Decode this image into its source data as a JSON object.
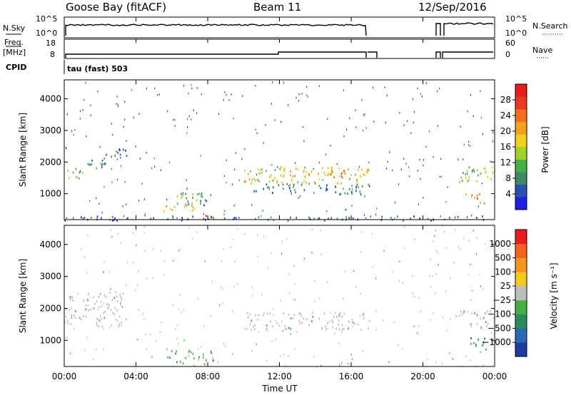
{
  "header": {
    "station": "Goose Bay (fitACF)",
    "beam": "Beam 11",
    "date": "12/Sep/2016"
  },
  "top_panels": {
    "nsky_label": "N.Sky",
    "nsky_ticks": [
      "10^5",
      "10^0"
    ],
    "nsearch_label": "N.Search",
    "nsearch_ticks": [
      "10^5",
      "10^0"
    ],
    "freq_label": "Freq.",
    "freq_unit": "[MHz]",
    "freq_ticks": [
      "18",
      "8"
    ],
    "nave_label": "Nave",
    "nave_ticks": [
      "60",
      "0"
    ],
    "cpid_label": "CPID",
    "cpid_value": "tau (fast) 503"
  },
  "chart_data": [
    {
      "type": "heatmap",
      "panel": "power",
      "ylabel": "Slant Range [km]",
      "xlabel": "Time UT",
      "x_ticks": [
        "00:00",
        "04:00",
        "08:00",
        "12:00",
        "16:00",
        "20:00",
        "00:00"
      ],
      "xlim_hours": [
        0,
        24
      ],
      "ylim": [
        180,
        4600
      ],
      "y_ticks": [
        1000,
        2000,
        3000,
        4000
      ],
      "colorbar_label": "Power [dB]",
      "colorbar_ticks": [
        "28",
        "24",
        "20",
        "16",
        "12",
        "8",
        "4"
      ],
      "colorbar_colors": [
        "#1f1fe6",
        "#2a4fb0",
        "#3c8a66",
        "#46b046",
        "#a0d22a",
        "#f0d21e",
        "#f5a01e",
        "#f06e1e",
        "#e63a1e",
        "#e61e1e"
      ],
      "echo_regions": [
        {
          "t0": 0.0,
          "t1": 1.0,
          "r0": 1450,
          "r1": 1800,
          "level": 0.35
        },
        {
          "t0": 1.0,
          "t1": 2.3,
          "r0": 1800,
          "r1": 2200,
          "level": 0.25
        },
        {
          "t0": 2.3,
          "t1": 3.5,
          "r0": 2150,
          "r1": 2550,
          "level": 0.18
        },
        {
          "t0": 5.5,
          "t1": 7.5,
          "r0": 400,
          "r1": 650,
          "level": 0.5
        },
        {
          "t0": 6.0,
          "t1": 8.3,
          "r0": 650,
          "r1": 1200,
          "level": 0.3
        },
        {
          "t0": 7.6,
          "t1": 8.3,
          "r0": 250,
          "r1": 450,
          "level": 0.85
        },
        {
          "t0": 10.0,
          "t1": 17.0,
          "r0": 1350,
          "r1": 1900,
          "level": 0.55
        },
        {
          "t0": 12.5,
          "t1": 15.5,
          "r0": 1550,
          "r1": 1750,
          "level": 0.75
        },
        {
          "t0": 10.5,
          "t1": 17.0,
          "r0": 1000,
          "r1": 1350,
          "level": 0.2
        },
        {
          "t0": 22.0,
          "t1": 24.0,
          "r0": 1400,
          "r1": 1950,
          "level": 0.45
        },
        {
          "t0": 22.3,
          "t1": 23.5,
          "r0": 700,
          "r1": 1050,
          "level": 0.85
        },
        {
          "t0": 0.0,
          "t1": 24.0,
          "r0": 180,
          "r1": 320,
          "level": 0.15
        }
      ]
    },
    {
      "type": "heatmap",
      "panel": "velocity",
      "ylabel": "Slant Range [km]",
      "xlabel": "Time UT",
      "x_ticks": [
        "00:00",
        "04:00",
        "08:00",
        "12:00",
        "16:00",
        "20:00",
        "00:00"
      ],
      "xlim_hours": [
        0,
        24
      ],
      "ylim": [
        180,
        4600
      ],
      "y_ticks": [
        1000,
        2000,
        3000,
        4000
      ],
      "colorbar_label": "Velocity [m s⁻¹]",
      "colorbar_ticks": [
        "1000",
        "500",
        "100",
        "25",
        "−25",
        "−100",
        "−500",
        "−1000"
      ],
      "colorbar_colors": [
        "#1e3ca0",
        "#2a6ab4",
        "#2e8a5a",
        "#46b046",
        "#bebebe",
        "#f0c81e",
        "#f5961e",
        "#f0641e",
        "#e61e1e"
      ],
      "echo_regions": [
        {
          "t0": 0.0,
          "t1": 3.5,
          "r0": 1450,
          "r1": 2550,
          "kind": "ground"
        },
        {
          "t0": 10.0,
          "t1": 17.0,
          "r0": 1350,
          "r1": 1900,
          "kind": "ground"
        },
        {
          "t0": 22.0,
          "t1": 24.0,
          "r0": 1400,
          "r1": 1950,
          "kind": "ground"
        },
        {
          "t0": 5.5,
          "t1": 8.3,
          "r0": 250,
          "r1": 700,
          "kind": "slow"
        },
        {
          "t0": 22.3,
          "t1": 23.6,
          "r0": 950,
          "r1": 1100,
          "kind": "toward"
        },
        {
          "t0": 22.5,
          "t1": 23.6,
          "r0": 700,
          "r1": 950,
          "kind": "slow"
        }
      ]
    }
  ]
}
